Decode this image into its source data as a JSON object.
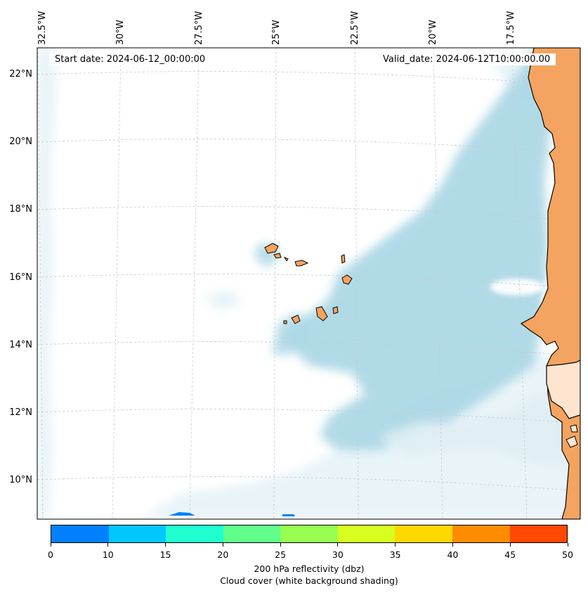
{
  "map": {
    "start_date": "Start date: 2024-06-12_00:00:00",
    "valid_date": "Valid_date: 2024-06-12T10:00:00.00",
    "lon_labels": [
      "32.5°W",
      "30°W",
      "27.5°W",
      "25°W",
      "22.5°W",
      "20°W",
      "17.5°W"
    ],
    "lat_labels": [
      "22°N",
      "20°N",
      "18°N",
      "16°N",
      "14°N",
      "12°N",
      "10°N"
    ],
    "land_color": "#f4a460",
    "cloud_color": "#add8e6",
    "coastline_color": "#000000"
  },
  "colorbar": {
    "ticks": [
      "0",
      "10",
      "15",
      "20",
      "25",
      "30",
      "35",
      "40",
      "45",
      "50"
    ],
    "colors": [
      "#0080ff",
      "#00c8ff",
      "#20ffd0",
      "#60ff8c",
      "#98ff50",
      "#d8ff20",
      "#ffd800",
      "#ff8c00",
      "#ff4800"
    ],
    "label_line1": "200 hPa reflectivity (dbz)",
    "label_line2": "Cloud cover (white background shading)"
  }
}
